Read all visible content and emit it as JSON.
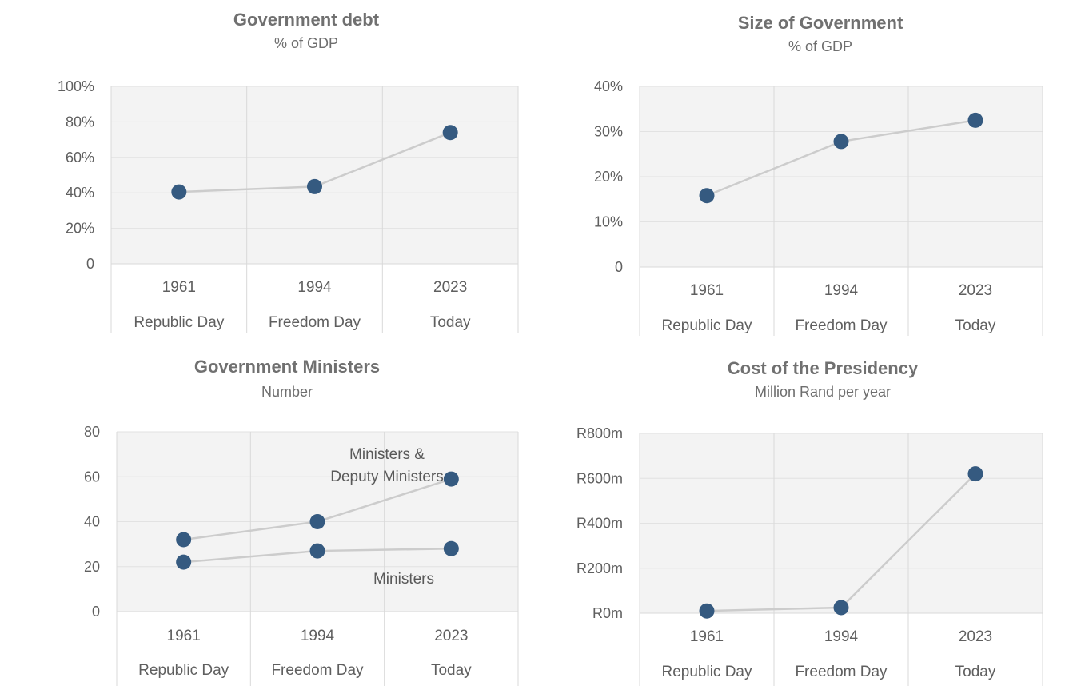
{
  "colors": {
    "point": "#355a80",
    "line": "#cccccc",
    "plot_bg": "#f3f3f3",
    "grid": "#e2e2e2",
    "category_divider": "#d9d9d9",
    "title": "#707070",
    "text": "#5f5f5f"
  },
  "chart_data": [
    {
      "type": "line",
      "title": "Government debt",
      "subtitle": "% of GDP",
      "categories": [
        "1961",
        "1994",
        "2023"
      ],
      "category_captions": [
        "Republic Day",
        "Freedom Day",
        "Today"
      ],
      "yticks": [
        0,
        20,
        40,
        60,
        80,
        100
      ],
      "ytick_labels": [
        "0",
        "20%",
        "40%",
        "60%",
        "80%",
        "100%"
      ],
      "ylim": [
        0,
        100
      ],
      "grid": true,
      "series": [
        {
          "values": [
            40.5,
            43.5,
            74
          ]
        }
      ],
      "annotations": []
    },
    {
      "type": "line",
      "title": "Size of Government",
      "subtitle": "% of GDP",
      "categories": [
        "1961",
        "1994",
        "2023"
      ],
      "category_captions": [
        "Republic Day",
        "Freedom Day",
        "Today"
      ],
      "yticks": [
        0,
        10,
        20,
        30,
        40
      ],
      "ytick_labels": [
        "0",
        "10%",
        "20%",
        "30%",
        "40%"
      ],
      "ylim": [
        0,
        40
      ],
      "grid": true,
      "series": [
        {
          "values": [
            15.8,
            27.8,
            32.5
          ]
        }
      ],
      "annotations": []
    },
    {
      "type": "line",
      "title": "Government Ministers",
      "subtitle": "Number",
      "categories": [
        "1961",
        "1994",
        "2023"
      ],
      "category_captions": [
        "Republic Day",
        "Freedom Day",
        "Today"
      ],
      "yticks": [
        0,
        20,
        40,
        60,
        80
      ],
      "ytick_labels": [
        "0",
        "20",
        "40",
        "60",
        "80"
      ],
      "ylim": [
        0,
        80
      ],
      "grid": true,
      "series": [
        {
          "name": "Ministers & Deputy Ministers",
          "values": [
            32,
            40,
            59
          ]
        },
        {
          "name": "Ministers",
          "values": [
            22,
            27,
            28
          ]
        }
      ],
      "annotations": [
        {
          "lines": [
            "Ministers &",
            "Deputy Ministers"
          ],
          "position": "above series 1 near 2023"
        },
        {
          "lines": [
            "Ministers"
          ],
          "position": "below series 2 near 2023"
        }
      ]
    },
    {
      "type": "line",
      "title": "Cost of the Presidency",
      "subtitle": "Million Rand per year",
      "categories": [
        "1961",
        "1994",
        "2023"
      ],
      "category_captions": [
        "Republic Day",
        "Freedom Day",
        "Today"
      ],
      "yticks": [
        0,
        200,
        400,
        600,
        800
      ],
      "ytick_labels": [
        "R0m",
        "R200m",
        "R400m",
        "R600m",
        "R800m"
      ],
      "ylim": [
        0,
        800
      ],
      "grid": true,
      "series": [
        {
          "values": [
            10,
            25,
            620
          ]
        }
      ],
      "annotations": []
    }
  ]
}
